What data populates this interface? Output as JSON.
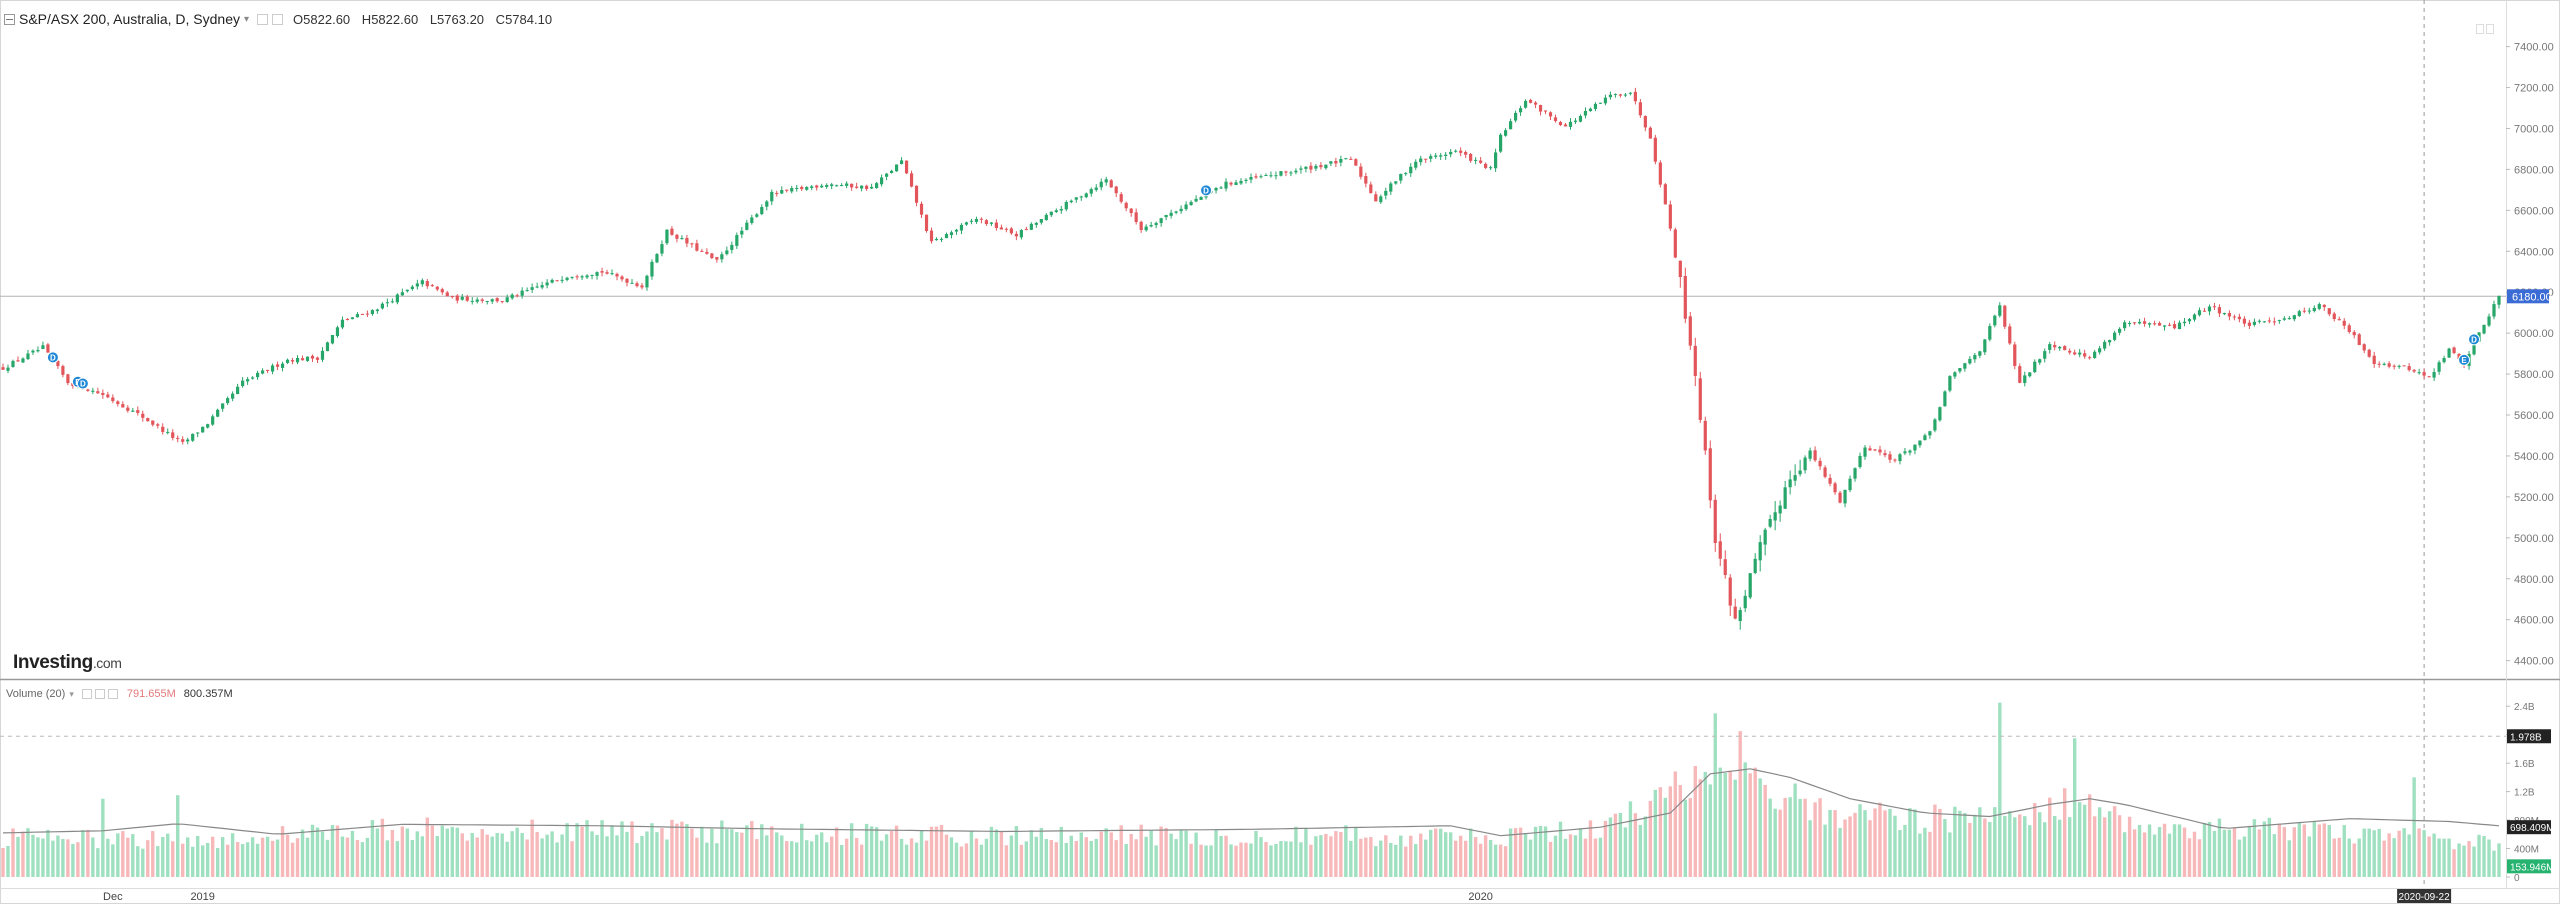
{
  "header": {
    "title": "S&P/ASX 200, Australia, D, Sydney",
    "ohlc": [
      {
        "label": "O",
        "value": "5822.60"
      },
      {
        "label": "H",
        "value": "5822.60"
      },
      {
        "label": "L",
        "value": "5763.20"
      },
      {
        "label": "C",
        "value": "5784.10"
      }
    ]
  },
  "volume_header": {
    "title": "Volume (20)",
    "value_a": "791.655M",
    "value_b": "800.357M"
  },
  "logo": {
    "brand": "Investing",
    "domain": ".com"
  },
  "colors": {
    "up": "#26a669",
    "down": "#e2555a",
    "vol_up": "#9fe0c0",
    "vol_down": "#f7b8ba",
    "ma_line": "#888888",
    "axis_text": "#777777",
    "price_tag": "#3b6bd4",
    "tag_dark": "#222222",
    "tag_green": "#25b36f"
  },
  "chart_data": {
    "type": "candlestick",
    "price_axis": {
      "ticks": [
        "7400.00",
        "7200.00",
        "7000.00",
        "6800.00",
        "6600.00",
        "6400.00",
        "6200.00",
        "6000.00",
        "5800.00",
        "5600.00",
        "5400.00",
        "5200.00",
        "5000.00",
        "4800.00",
        "4600.00",
        "4400.00"
      ],
      "range": [
        4320,
        7530
      ]
    },
    "volume_axis": {
      "ticks": [
        "2.4B",
        "2B",
        "1.6B",
        "1.2B",
        "800M",
        "400M",
        "0"
      ],
      "range": [
        0,
        2.6
      ]
    },
    "crosshair_price_label": "6180.00",
    "volume_labels": {
      "dashed_level": "1.978B",
      "ma_level": "698.409M",
      "last_volume": "153.946M"
    },
    "x_labels": [
      {
        "text": "Dec",
        "bar": 22
      },
      {
        "text": "2019",
        "bar": 40
      },
      {
        "text": "2020",
        "bar": 296
      }
    ],
    "crosshair_date_label": "2020-09-22",
    "crosshair_bar": 485,
    "last_bar_close": 6180,
    "keypoints": [
      [
        0,
        5830
      ],
      [
        8,
        5930
      ],
      [
        13,
        5760
      ],
      [
        20,
        5700
      ],
      [
        28,
        5590
      ],
      [
        36,
        5460
      ],
      [
        41,
        5560
      ],
      [
        48,
        5760
      ],
      [
        57,
        5870
      ],
      [
        63,
        5880
      ],
      [
        68,
        6060
      ],
      [
        74,
        6110
      ],
      [
        84,
        6250
      ],
      [
        90,
        6170
      ],
      [
        100,
        6160
      ],
      [
        113,
        6280
      ],
      [
        120,
        6300
      ],
      [
        128,
        6230
      ],
      [
        133,
        6500
      ],
      [
        143,
        6350
      ],
      [
        154,
        6680
      ],
      [
        165,
        6730
      ],
      [
        174,
        6710
      ],
      [
        180,
        6840
      ],
      [
        186,
        6440
      ],
      [
        195,
        6560
      ],
      [
        203,
        6480
      ],
      [
        221,
        6750
      ],
      [
        228,
        6510
      ],
      [
        245,
        6730
      ],
      [
        258,
        6790
      ],
      [
        270,
        6850
      ],
      [
        275,
        6650
      ],
      [
        283,
        6840
      ],
      [
        291,
        6890
      ],
      [
        298,
        6800
      ],
      [
        300,
        6960
      ],
      [
        305,
        7140
      ],
      [
        313,
        7010
      ],
      [
        322,
        7160
      ],
      [
        326,
        7180
      ],
      [
        330,
        6960
      ],
      [
        335,
        6400
      ],
      [
        339,
        5800
      ],
      [
        343,
        5000
      ],
      [
        347,
        4590
      ],
      [
        352,
        4950
      ],
      [
        358,
        5300
      ],
      [
        362,
        5420
      ],
      [
        368,
        5180
      ],
      [
        373,
        5450
      ],
      [
        379,
        5380
      ],
      [
        386,
        5510
      ],
      [
        390,
        5780
      ],
      [
        396,
        5920
      ],
      [
        400,
        6130
      ],
      [
        404,
        5750
      ],
      [
        410,
        5950
      ],
      [
        418,
        5880
      ],
      [
        425,
        6050
      ],
      [
        435,
        6030
      ],
      [
        442,
        6130
      ],
      [
        450,
        6040
      ],
      [
        458,
        6080
      ],
      [
        464,
        6140
      ],
      [
        470,
        6010
      ],
      [
        475,
        5860
      ],
      [
        483,
        5820
      ],
      [
        486,
        5780
      ],
      [
        490,
        5920
      ],
      [
        493,
        5850
      ],
      [
        496,
        6000
      ],
      [
        500,
        6180
      ]
    ],
    "volume_profile": [
      [
        0,
        0.58
      ],
      [
        40,
        0.55
      ],
      [
        80,
        0.72
      ],
      [
        150,
        0.66
      ],
      [
        200,
        0.6
      ],
      [
        260,
        0.63
      ],
      [
        300,
        0.56
      ],
      [
        320,
        0.72
      ],
      [
        330,
        1.05
      ],
      [
        337,
        1.55
      ],
      [
        343,
        1.72
      ],
      [
        350,
        1.5
      ],
      [
        360,
        1.05
      ],
      [
        380,
        0.85
      ],
      [
        400,
        0.9
      ],
      [
        415,
        1.1
      ],
      [
        430,
        0.75
      ],
      [
        460,
        0.68
      ],
      [
        500,
        0.5
      ]
    ],
    "volume_ma": [
      [
        0,
        0.62
      ],
      [
        20,
        0.65
      ],
      [
        35,
        0.75
      ],
      [
        55,
        0.6
      ],
      [
        80,
        0.74
      ],
      [
        120,
        0.72
      ],
      [
        150,
        0.68
      ],
      [
        200,
        0.64
      ],
      [
        250,
        0.67
      ],
      [
        290,
        0.72
      ],
      [
        300,
        0.58
      ],
      [
        320,
        0.7
      ],
      [
        334,
        0.9
      ],
      [
        342,
        1.45
      ],
      [
        350,
        1.52
      ],
      [
        358,
        1.4
      ],
      [
        370,
        1.1
      ],
      [
        385,
        0.9
      ],
      [
        398,
        0.85
      ],
      [
        410,
        1.02
      ],
      [
        418,
        1.1
      ],
      [
        425,
        1.02
      ],
      [
        435,
        0.85
      ],
      [
        445,
        0.68
      ],
      [
        470,
        0.82
      ],
      [
        490,
        0.78
      ],
      [
        500,
        0.72
      ]
    ],
    "volume_spikes": [
      [
        20,
        1.1
      ],
      [
        35,
        1.15
      ],
      [
        343,
        2.3
      ],
      [
        348,
        2.05
      ],
      [
        400,
        2.45
      ],
      [
        415,
        1.95
      ],
      [
        483,
        1.4
      ]
    ],
    "event_markers": [
      {
        "bar": 10,
        "letter": "D"
      },
      {
        "bar": 15,
        "letter": "E"
      },
      {
        "bar": 16,
        "letter": "D"
      },
      {
        "bar": 241,
        "letter": "D"
      },
      {
        "bar": 493,
        "letter": "E"
      },
      {
        "bar": 495,
        "letter": "D"
      }
    ]
  }
}
